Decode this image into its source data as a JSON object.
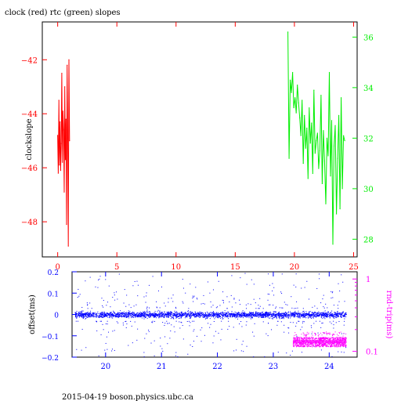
{
  "title": "clock (red) rtc (green) slopes",
  "footer": "2015-04-19  boson.physics.ubc.ca",
  "colors": {
    "clock": "#ff0000",
    "rtc": "#00ee00",
    "offset": "#0000ff",
    "rndtrip": "#ff00ff",
    "frame": "#000000"
  },
  "chart_data": [
    {
      "type": "line",
      "title": "clock (red) rtc (green) slopes",
      "ylabel": "clockslope",
      "xlim": [
        -1.3,
        25.3
      ],
      "ylim": [
        -49.3,
        -40.6
      ],
      "xticks": [
        0,
        5,
        10,
        15,
        20,
        25
      ],
      "yticks": [
        -42,
        -44,
        -46,
        -48
      ],
      "y2lim": [
        27.3,
        36.6
      ],
      "y2ticks": [
        28,
        30,
        32,
        34,
        36
      ],
      "grid": false,
      "series": [
        {
          "name": "clock",
          "axis": "left",
          "color": "#ff0000",
          "x": [
            0.0,
            0.05,
            0.1,
            0.15,
            0.2,
            0.25,
            0.3,
            0.35,
            0.4,
            0.45,
            0.5,
            0.55,
            0.6,
            0.65,
            0.7,
            0.75,
            0.8,
            0.85,
            0.9,
            0.95,
            1.0
          ],
          "y": [
            -44.8,
            -46.2,
            -43.5,
            -45.9,
            -44.3,
            -46.1,
            -45.1,
            -42.5,
            -45.8,
            -43.9,
            -44.6,
            -46.9,
            -43.0,
            -45.7,
            -44.2,
            -48.1,
            -42.2,
            -44.9,
            -48.9,
            -42.0,
            -45.0
          ]
        },
        {
          "name": "rtc",
          "axis": "right",
          "color": "#00ee00",
          "x": [
            19.45,
            19.55,
            19.65,
            19.75,
            19.85,
            19.95,
            20.05,
            20.15,
            20.25,
            20.35,
            20.45,
            20.55,
            20.65,
            20.75,
            20.85,
            20.95,
            21.05,
            21.15,
            21.25,
            21.35,
            21.45,
            21.55,
            21.65,
            21.75,
            21.85,
            21.95,
            22.05,
            22.15,
            22.25,
            22.35,
            22.45,
            22.55,
            22.65,
            22.75,
            22.85,
            22.95,
            23.05,
            23.15,
            23.25,
            23.35,
            23.45,
            23.55,
            23.65,
            23.75,
            23.85,
            23.95,
            24.05,
            24.15,
            24.25
          ],
          "y": [
            36.2,
            31.2,
            34.3,
            33.8,
            34.6,
            33.2,
            33.6,
            33.0,
            34.1,
            33.4,
            32.8,
            32.1,
            33.5,
            31.0,
            32.9,
            31.6,
            32.4,
            30.4,
            33.2,
            31.8,
            32.6,
            30.6,
            33.9,
            31.4,
            31.9,
            32.2,
            30.8,
            31.5,
            33.7,
            30.2,
            32.3,
            31.1,
            29.4,
            32.0,
            31.3,
            34.6,
            30.5,
            32.7,
            27.8,
            31.7,
            32.5,
            29.0,
            31.2,
            32.9,
            29.2,
            33.6,
            30.0,
            32.1,
            31.9
          ]
        }
      ]
    },
    {
      "type": "scatter",
      "ylabel": "offset(ms)",
      "y2label": "rnd-trip(ms)",
      "xlim": [
        19.4,
        24.5
      ],
      "ylim": [
        -0.2,
        0.2
      ],
      "xticks": [
        20,
        21,
        22,
        23,
        24
      ],
      "yticks": [
        0.2,
        0.1,
        0,
        -0.1,
        -0.2
      ],
      "y2scale": "log",
      "y2ticks": [
        1,
        0.1
      ],
      "grid": false,
      "series": [
        {
          "name": "offset",
          "color": "#0000ff",
          "x_range": [
            19.45,
            24.3
          ],
          "center": 0.0,
          "band": 0.02,
          "point_count": 2600,
          "outlier_count": 400
        },
        {
          "name": "rnd-trip",
          "color": "#ff00ff",
          "x_range": [
            23.35,
            24.3
          ],
          "y_band": [
            -0.15,
            -0.105
          ],
          "point_count": 1000
        }
      ]
    }
  ]
}
